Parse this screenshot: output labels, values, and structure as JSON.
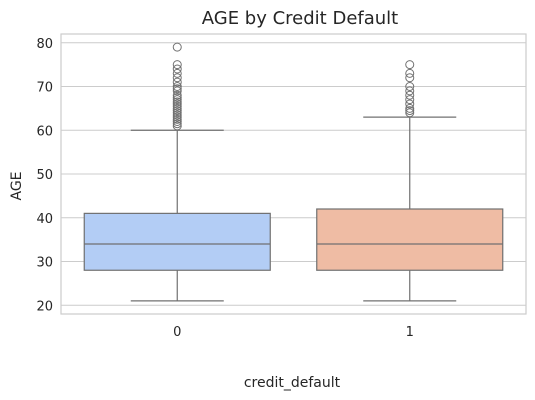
{
  "chart_data": {
    "type": "box",
    "title": "AGE by Credit Default",
    "xlabel": "credit_default",
    "ylabel": "AGE",
    "categories": [
      "0",
      "1"
    ],
    "ylim": [
      18,
      82
    ],
    "yticks": [
      20,
      30,
      40,
      50,
      60,
      70,
      80
    ],
    "grid": "horizontal",
    "boxes": [
      {
        "category": "0",
        "whisker_low": 21,
        "q1": 28,
        "median": 34,
        "q3": 41,
        "whisker_high": 60,
        "outliers": [
          61,
          61.5,
          62,
          62.5,
          63,
          63.5,
          64,
          64.5,
          65,
          65.5,
          66,
          66.5,
          67,
          67.5,
          68,
          69,
          69.5,
          70,
          71,
          72,
          73,
          74,
          75,
          79
        ],
        "color": "#b3cdf5"
      },
      {
        "category": "1",
        "whisker_low": 21,
        "q1": 28,
        "median": 34,
        "q3": 42,
        "whisker_high": 63,
        "outliers": [
          64,
          64.5,
          65,
          66,
          67,
          68,
          69,
          70,
          72,
          73,
          75
        ],
        "color": "#efbca4"
      }
    ],
    "colors": {
      "line": "#707070",
      "grid": "#cccccc",
      "frame": "#cccccc"
    }
  }
}
